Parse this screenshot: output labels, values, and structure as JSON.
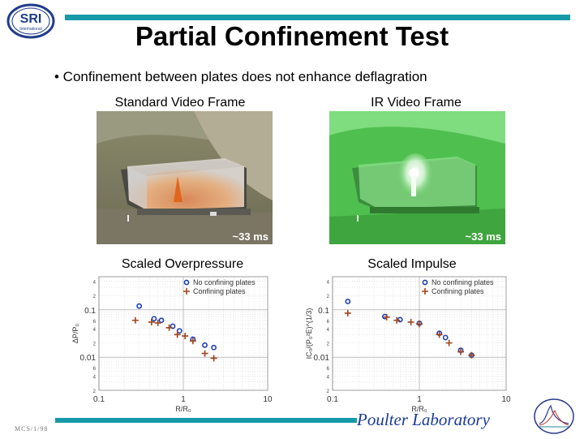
{
  "logo": {
    "text": "SRI",
    "subtext": "International"
  },
  "title": "Partial Confinement Test",
  "bullet": "• Confinement between plates does not enhance deflagration",
  "panels": {
    "standard_caption": "Standard Video Frame",
    "ir_caption": "IR Video Frame",
    "standard_badge": "~33 ms",
    "ir_badge": "~33 ms"
  },
  "plots": {
    "overpressure_title": "Scaled Overpressure",
    "impulse_title": "Scaled Impulse"
  },
  "footer": {
    "lab": "Poulter Laboratory",
    "code": "MCS/1/98"
  },
  "colors": {
    "accent_bar": "#169aa8",
    "no_plates": "#1f3fb0",
    "plates": "#a0441c",
    "lab_text": "#1a3a9c"
  },
  "chart_data": [
    {
      "type": "scatter",
      "title": "Scaled Overpressure",
      "xlabel": "R/R₀",
      "ylabel": "ΔP/P₀",
      "xscale": "log",
      "yscale": "log",
      "xlim": [
        0.1,
        10
      ],
      "ylim": [
        0.002,
        0.5
      ],
      "x_tick_labels": [
        "0.1",
        "1",
        "10"
      ],
      "y_tick_labels": [
        "0.1",
        "0.01"
      ],
      "legend": "top-right",
      "series": [
        {
          "name": "No confining plates",
          "marker": "circle",
          "x": [
            0.3,
            0.45,
            0.55,
            0.75,
            0.9,
            1.3,
            1.8,
            2.3
          ],
          "y": [
            0.12,
            0.065,
            0.06,
            0.045,
            0.036,
            0.024,
            0.018,
            0.016
          ]
        },
        {
          "name": "Confining plates",
          "marker": "plus",
          "x": [
            0.27,
            0.42,
            0.5,
            0.68,
            0.85,
            1.05,
            1.3,
            1.8,
            2.3
          ],
          "y": [
            0.06,
            0.055,
            0.053,
            0.042,
            0.03,
            0.028,
            0.022,
            0.012,
            0.0095
          ]
        }
      ]
    },
    {
      "type": "scatter",
      "title": "Scaled Impulse",
      "xlabel": "R/R₀",
      "ylabel": "IC₀/(P₀²E)^(1/3)",
      "xscale": "log",
      "yscale": "log",
      "xlim": [
        0.1,
        10
      ],
      "ylim": [
        0.002,
        0.5
      ],
      "x_tick_labels": [
        "0.1",
        "1",
        "10"
      ],
      "y_tick_labels": [
        "0.1",
        "0.01"
      ],
      "legend": "top-right",
      "series": [
        {
          "name": "No confining plates",
          "marker": "circle",
          "x": [
            0.15,
            0.4,
            0.6,
            1.0,
            1.7,
            2.0,
            3.0,
            4.0
          ],
          "y": [
            0.15,
            0.072,
            0.062,
            0.052,
            0.032,
            0.026,
            0.014,
            0.011
          ]
        },
        {
          "name": "Confining plates",
          "marker": "plus",
          "x": [
            0.15,
            0.42,
            0.55,
            0.8,
            1.0,
            1.7,
            2.2,
            3.0,
            4.0
          ],
          "y": [
            0.085,
            0.07,
            0.06,
            0.055,
            0.05,
            0.03,
            0.02,
            0.013,
            0.011
          ]
        }
      ]
    }
  ]
}
